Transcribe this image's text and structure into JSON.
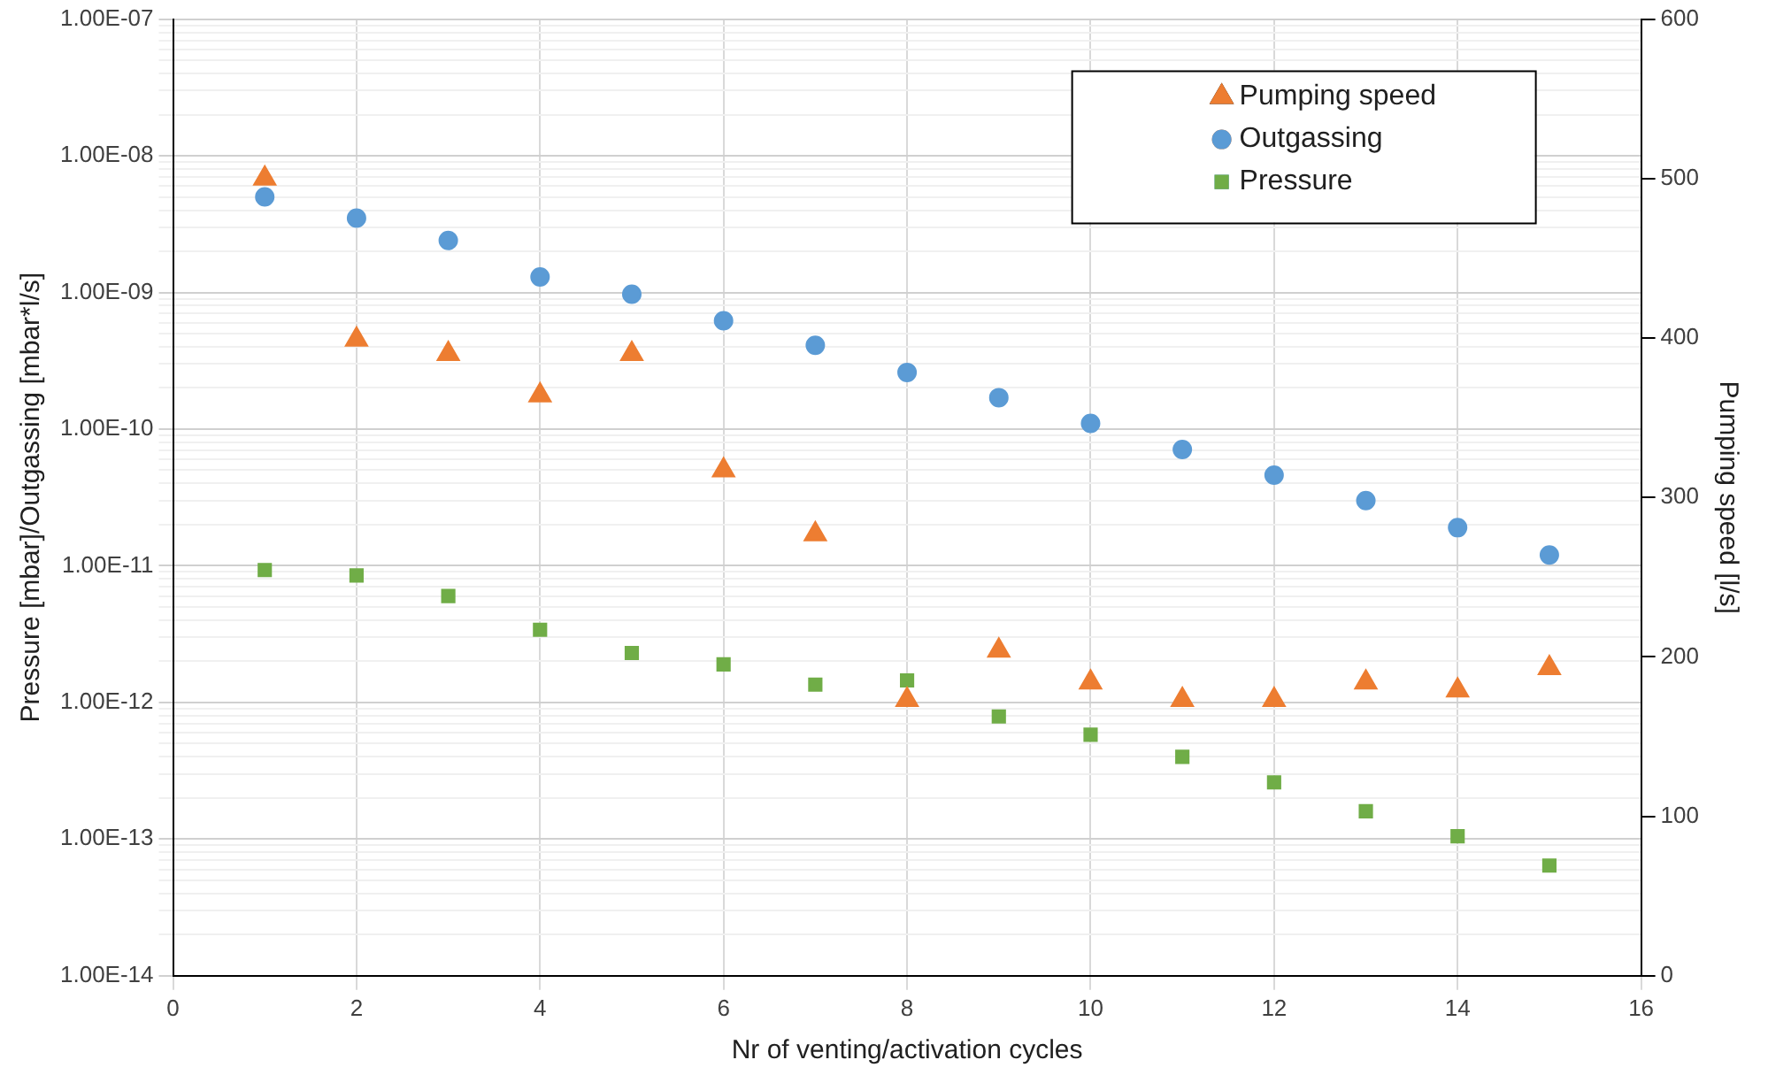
{
  "chart_data": {
    "type": "scatter",
    "xlabel": "Nr of venting/activation cycles",
    "ylabel": "Pressure [mbar]/Outgassing [mbar*l/s]",
    "y2label": "Pumping speed [l/s]",
    "x": [
      1,
      2,
      3,
      4,
      5,
      6,
      7,
      8,
      9,
      10,
      11,
      12,
      13,
      14,
      15
    ],
    "series": [
      {
        "name": "Pumping speed",
        "color": "#ed7d31",
        "marker": "triangle",
        "axis": "y2",
        "values": [
          500,
          399,
          390,
          364,
          390,
          317,
          277,
          173,
          204,
          184,
          173,
          173,
          184,
          179,
          193
        ]
      },
      {
        "name": "Outgassing",
        "color": "#5b9bd5",
        "marker": "circle",
        "values": [
          5e-09,
          3.5e-09,
          2.4e-09,
          1.3e-09,
          9.7e-10,
          6.2e-10,
          4.1e-10,
          2.6e-10,
          1.7e-10,
          1.1e-10,
          7.1e-11,
          4.6e-11,
          3e-11,
          1.9e-11,
          1.2e-11
        ]
      },
      {
        "name": "Pressure",
        "color": "#70ad47",
        "marker": "square",
        "values": [
          9.3e-12,
          8.5e-12,
          6e-12,
          3.4e-12,
          2.3e-12,
          1.9e-12,
          1.35e-12,
          1.45e-12,
          7.9e-13,
          5.8e-13,
          4e-13,
          2.6e-13,
          1.6e-13,
          1.05e-13,
          6.4e-14
        ]
      }
    ],
    "log": "y",
    "xlim": [
      0,
      16
    ],
    "xticks": [
      0,
      2,
      4,
      6,
      8,
      10,
      12,
      14,
      16
    ],
    "ylim": [
      1e-14,
      1e-07
    ],
    "yticks": [
      {
        "value": 1e-14,
        "label": "1.00E-14"
      },
      {
        "value": 1e-13,
        "label": "1.00E-13"
      },
      {
        "value": 1e-12,
        "label": "1.00E-12"
      },
      {
        "value": 1e-11,
        "label": "1.00E-11"
      },
      {
        "value": 1e-10,
        "label": "1.00E-10"
      },
      {
        "value": 1e-09,
        "label": "1.00E-09"
      },
      {
        "value": 1e-08,
        "label": "1.00E-08"
      },
      {
        "value": 1e-07,
        "label": "1.00E-07"
      }
    ],
    "y2lim": [
      0,
      600
    ],
    "y2ticks": [
      0,
      100,
      200,
      300,
      400,
      500,
      600
    ],
    "grid": true,
    "legend": "top right"
  }
}
